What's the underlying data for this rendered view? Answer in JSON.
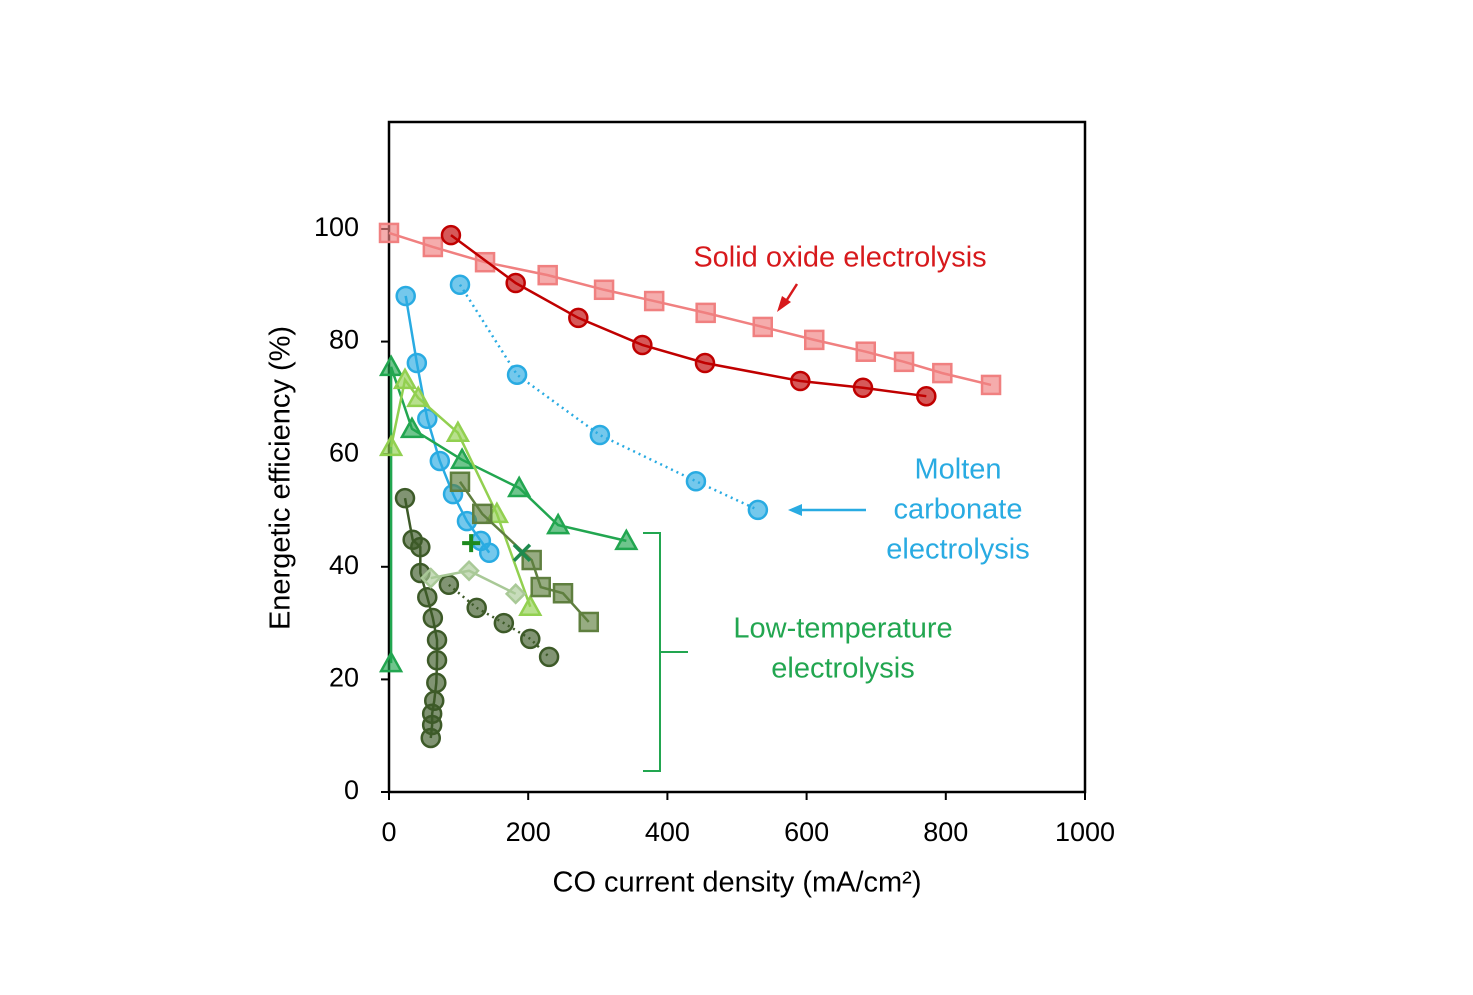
{
  "chart_data": {
    "type": "scatter",
    "xlabel": "CO current density (mA/cm²)",
    "ylabel": "Energetic efficiency (%)",
    "xlim": [
      0,
      1000
    ],
    "ylim": [
      0,
      119
    ],
    "xticks": [
      0,
      200,
      400,
      600,
      800,
      1000
    ],
    "yticks": [
      0,
      20,
      40,
      60,
      80,
      100
    ],
    "annotations": [
      {
        "lines": [
          "Solid oxide electrolysis"
        ],
        "color": "#d7191c"
      },
      {
        "lines": [
          "Molten",
          "carbonate",
          "electrolysis"
        ],
        "color": "#29abe2"
      },
      {
        "lines": [
          "Low-temperature",
          "electrolysis"
        ],
        "color": "#22a650"
      }
    ],
    "series": [
      {
        "marker": "square",
        "color": "#f08080",
        "line": "solid",
        "x": [
          0,
          63,
          138,
          228,
          309,
          381,
          455,
          537,
          611,
          685,
          740,
          795,
          865
        ],
        "values": [
          99.3,
          96.8,
          94.1,
          91.8,
          89.2,
          87.2,
          85.1,
          82.6,
          80.3,
          78.2,
          76.4,
          74.4,
          72.3
        ]
      },
      {
        "marker": "circle",
        "color": "#c00000",
        "line": "solid",
        "x": [
          89,
          182,
          272,
          364,
          454,
          591,
          681,
          772
        ],
        "values": [
          98.9,
          90.4,
          84.2,
          79.4,
          76.2,
          73.0,
          71.8,
          70.3
        ]
      },
      {
        "marker": "circle",
        "color": "#29abe2",
        "line": "dotted",
        "x": [
          102,
          184,
          303,
          441,
          530
        ],
        "values": [
          90.1,
          74.1,
          63.4,
          55.2,
          50.1
        ]
      },
      {
        "marker": "circle",
        "color": "#29abe2",
        "line": "solid",
        "x": [
          24,
          40,
          55,
          73,
          92,
          112,
          132,
          144
        ],
        "values": [
          88.1,
          76.2,
          66.3,
          58.8,
          52.9,
          48.1,
          44.6,
          42.5
        ]
      },
      {
        "marker": "triangle",
        "color": "#22a650",
        "line": "solid",
        "x": [
          3,
          3,
          33,
          105,
          187,
          243,
          341
        ],
        "values": [
          22.9,
          75.5,
          64.5,
          59.0,
          54.0,
          47.4,
          44.6
        ]
      },
      {
        "marker": "triangle",
        "color": "#92d050",
        "line": "solid",
        "x": [
          3,
          23,
          42,
          99,
          155,
          203
        ],
        "values": [
          61.3,
          73.2,
          70.0,
          63.8,
          49.4,
          32.9
        ]
      },
      {
        "marker": "square",
        "color": "#5f7f3f",
        "line": "solid",
        "x": [
          102,
          134,
          205,
          218,
          250,
          287
        ],
        "values": [
          55.1,
          49.4,
          41.2,
          36.4,
          35.3,
          30.2
        ]
      },
      {
        "marker": "circle",
        "color": "#3d5a28",
        "line": "solid",
        "x": [
          23,
          34,
          45,
          45,
          55,
          63,
          69,
          69,
          68,
          65,
          62,
          62,
          60
        ],
        "values": [
          52.2,
          44.8,
          43.5,
          38.9,
          34.6,
          30.9,
          27.0,
          23.4,
          19.4,
          16.2,
          13.9,
          11.9,
          9.6
        ]
      },
      {
        "marker": "circle",
        "color": "#3d5a28",
        "line": "dotted",
        "x": [
          86,
          126,
          165,
          203,
          230
        ],
        "values": [
          36.8,
          32.7,
          30.0,
          27.2,
          24.0
        ]
      },
      {
        "marker": "diamond",
        "color": "#a9c997",
        "line": "solid",
        "x": [
          60,
          115,
          182
        ],
        "values": [
          38.0,
          39.3,
          35.2
        ]
      },
      {
        "marker": "plus",
        "color": "#1e8a1e",
        "line": "none",
        "x": [
          118
        ],
        "values": [
          44.2
        ]
      },
      {
        "marker": "cross",
        "color": "#1e8a4e",
        "line": "none",
        "x": [
          191
        ],
        "values": [
          42.5
        ]
      }
    ]
  }
}
